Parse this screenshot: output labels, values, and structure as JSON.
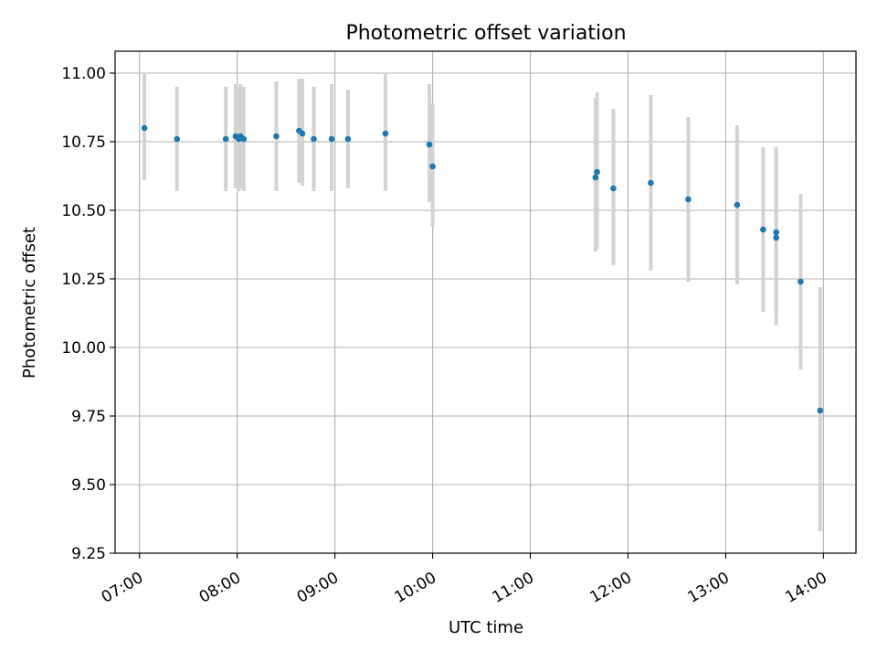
{
  "chart_data": {
    "type": "scatter",
    "title": "Photometric offset variation",
    "xlabel": "UTC time",
    "ylabel": "Photometric offset",
    "x_axis_kind": "time",
    "xlim": [
      "06:45",
      "14:20"
    ],
    "ylim": [
      9.25,
      11.08
    ],
    "xticks": [
      "07:00",
      "08:00",
      "09:00",
      "10:00",
      "11:00",
      "12:00",
      "13:00",
      "14:00"
    ],
    "yticks": [
      "9.25",
      "9.50",
      "9.75",
      "10.00",
      "10.25",
      "10.50",
      "10.75",
      "11.00"
    ],
    "grid": true,
    "colors": {
      "marker": "#1f77b4",
      "errorbar": "#d3d3d3",
      "grid": "#b0b0b0"
    },
    "points": [
      {
        "x": "07:03",
        "y": 10.8,
        "err_low": 10.61,
        "err_high": 11.0
      },
      {
        "x": "07:23",
        "y": 10.76,
        "err_low": 10.57,
        "err_high": 10.95
      },
      {
        "x": "07:53",
        "y": 10.76,
        "err_low": 10.57,
        "err_high": 10.95
      },
      {
        "x": "07:59",
        "y": 10.77,
        "err_low": 10.58,
        "err_high": 10.96
      },
      {
        "x": "08:01",
        "y": 10.76,
        "err_low": 10.57,
        "err_high": 10.95
      },
      {
        "x": "08:02",
        "y": 10.77,
        "err_low": 10.58,
        "err_high": 10.96
      },
      {
        "x": "08:04",
        "y": 10.76,
        "err_low": 10.57,
        "err_high": 10.95
      },
      {
        "x": "08:24",
        "y": 10.77,
        "err_low": 10.57,
        "err_high": 10.97
      },
      {
        "x": "08:38",
        "y": 10.79,
        "err_low": 10.6,
        "err_high": 10.98
      },
      {
        "x": "08:40",
        "y": 10.78,
        "err_low": 10.59,
        "err_high": 10.98
      },
      {
        "x": "08:47",
        "y": 10.76,
        "err_low": 10.57,
        "err_high": 10.95
      },
      {
        "x": "08:58",
        "y": 10.76,
        "err_low": 10.57,
        "err_high": 10.96
      },
      {
        "x": "09:08",
        "y": 10.76,
        "err_low": 10.58,
        "err_high": 10.94
      },
      {
        "x": "09:31",
        "y": 10.78,
        "err_low": 10.57,
        "err_high": 11.0
      },
      {
        "x": "09:58",
        "y": 10.74,
        "err_low": 10.53,
        "err_high": 10.96
      },
      {
        "x": "10:00",
        "y": 10.66,
        "err_low": 10.44,
        "err_high": 10.89
      },
      {
        "x": "11:40",
        "y": 10.62,
        "err_low": 10.35,
        "err_high": 10.91
      },
      {
        "x": "11:41",
        "y": 10.64,
        "err_low": 10.36,
        "err_high": 10.93
      },
      {
        "x": "11:51",
        "y": 10.58,
        "err_low": 10.3,
        "err_high": 10.87
      },
      {
        "x": "12:14",
        "y": 10.6,
        "err_low": 10.28,
        "err_high": 10.92
      },
      {
        "x": "12:37",
        "y": 10.54,
        "err_low": 10.24,
        "err_high": 10.84
      },
      {
        "x": "13:07",
        "y": 10.52,
        "err_low": 10.23,
        "err_high": 10.81
      },
      {
        "x": "13:23",
        "y": 10.43,
        "err_low": 10.13,
        "err_high": 10.73
      },
      {
        "x": "13:31",
        "y": 10.42,
        "err_low": 10.12,
        "err_high": 10.72
      },
      {
        "x": "13:31",
        "y": 10.4,
        "err_low": 10.08,
        "err_high": 10.73
      },
      {
        "x": "13:46",
        "y": 10.24,
        "err_low": 9.92,
        "err_high": 10.56
      },
      {
        "x": "13:58",
        "y": 9.77,
        "err_low": 9.33,
        "err_high": 10.22
      }
    ]
  }
}
